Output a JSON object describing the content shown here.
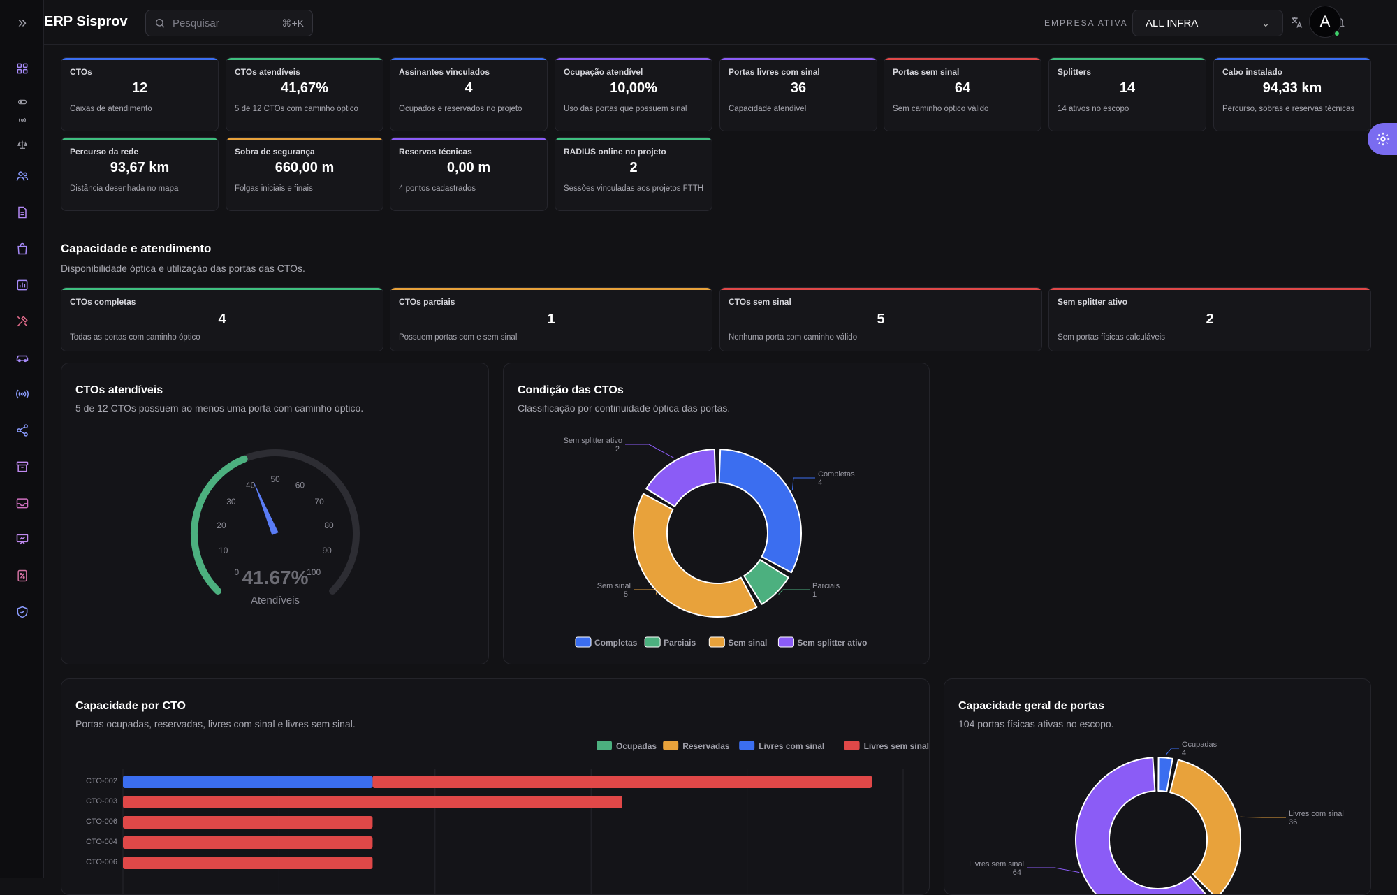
{
  "app": {
    "title": "ERP Sisprov"
  },
  "search": {
    "placeholder": "Pesquisar",
    "shortcut": "⌘+K"
  },
  "company": {
    "label": "EMPRESA ATIVA",
    "selected": "ALL INFRA"
  },
  "user": {
    "initial": "A"
  },
  "sidebar_icons": [
    "dashboard-icon",
    "router-icon",
    "radio-icon",
    "scale-icon",
    "users-icon",
    "document-icon",
    "shopping-bag-icon",
    "chart-icon",
    "tools-icon",
    "vehicle-icon",
    "signal-icon",
    "share-icon",
    "archive-icon",
    "inbox-icon",
    "presentation-icon",
    "percent-icon",
    "shield-icon"
  ],
  "kpis": [
    {
      "label": "CTOs",
      "value": "12",
      "sub": "Caixas de atendimento",
      "color": "#3b6ef0"
    },
    {
      "label": "CTOs atendíveis",
      "value": "41,67%",
      "sub": "5 de 12 CTOs com caminho óptico",
      "color": "#3fbf7f"
    },
    {
      "label": "Assinantes vinculados",
      "value": "4",
      "sub": "Ocupados e reservados no projeto",
      "color": "#3b6ef0"
    },
    {
      "label": "Ocupação atendível",
      "value": "10,00%",
      "sub": "Uso das portas que possuem sinal",
      "color": "#8b5cf6"
    },
    {
      "label": "Portas livres com sinal",
      "value": "36",
      "sub": "Capacidade atendível",
      "color": "#8b5cf6"
    },
    {
      "label": "Portas sem sinal",
      "value": "64",
      "sub": "Sem caminho óptico válido",
      "color": "#e04848"
    },
    {
      "label": "Splitters",
      "value": "14",
      "sub": "14 ativos no escopo",
      "color": "#3fbf7f"
    },
    {
      "label": "Cabo instalado",
      "value": "94,33 km",
      "sub": "Percurso, sobras e reservas técnicas",
      "color": "#3b6ef0"
    },
    {
      "label": "Percurso da rede",
      "value": "93,67 km",
      "sub": "Distância desenhada no mapa",
      "color": "#3fbf7f"
    },
    {
      "label": "Sobra de segurança",
      "value": "660,00 m",
      "sub": "Folgas iniciais e finais",
      "color": "#e8a23b"
    },
    {
      "label": "Reservas técnicas",
      "value": "0,00 m",
      "sub": "4 pontos cadastrados",
      "color": "#8b5cf6"
    },
    {
      "label": "RADIUS online no projeto",
      "value": "2",
      "sub": "Sessões vinculadas aos projetos FTTH",
      "color": "#3fbf7f"
    }
  ],
  "capacity_section": {
    "title": "Capacidade e atendimento",
    "subtitle": "Disponibilidade óptica e utilização das portas das CTOs."
  },
  "capacity_cards": [
    {
      "label": "CTOs completas",
      "value": "4",
      "sub": "Todas as portas com caminho óptico",
      "color": "#3fbf7f"
    },
    {
      "label": "CTOs parciais",
      "value": "1",
      "sub": "Possuem portas com e sem sinal",
      "color": "#e8a23b"
    },
    {
      "label": "CTOs sem sinal",
      "value": "5",
      "sub": "Nenhuma porta com caminho válido",
      "color": "#e04848"
    },
    {
      "label": "Sem splitter ativo",
      "value": "2",
      "sub": "Sem portas físicas calculáveis",
      "color": "#e04848"
    }
  ],
  "gauge_panel": {
    "title": "CTOs atendíveis",
    "subtitle": "5 de 12 CTOs possuem ao menos uma porta com caminho óptico."
  },
  "chart_data": [
    {
      "type": "gauge",
      "value": 41.67,
      "value_label": "41.67%",
      "caption": "Atendíveis",
      "range": [
        0,
        100
      ],
      "ticks": [
        "0",
        "10",
        "20",
        "30",
        "40",
        "50",
        "60",
        "70",
        "80",
        "90",
        "100"
      ],
      "color": "#4cb07f"
    },
    {
      "type": "pie",
      "title": "Condição das CTOs",
      "subtitle": "Classificação por continuidade óptica das portas.",
      "slices": [
        {
          "name": "Completas",
          "value": 4,
          "color": "#3b6ef0"
        },
        {
          "name": "Parciais",
          "value": 1,
          "color": "#4cb07f"
        },
        {
          "name": "Sem sinal",
          "value": 5,
          "color": "#e8a23b"
        },
        {
          "name": "Sem splitter ativo",
          "value": 2,
          "color": "#8b5cf6"
        }
      ]
    },
    {
      "type": "bar",
      "title": "Capacidade por CTO",
      "subtitle": "Portas ocupadas, reservadas, livres com sinal e livres sem sinal.",
      "orientation": "horizontal",
      "stacked": true,
      "categories": [
        "CTO-002",
        "CTO-003",
        "CTO-006",
        "CTO-004",
        "CTO-006"
      ],
      "series": [
        {
          "name": "Ocupadas",
          "values": [
            0,
            0,
            0,
            0,
            0
          ],
          "color": "#4cb07f"
        },
        {
          "name": "Reservadas",
          "values": [
            0,
            0,
            0,
            0,
            0
          ],
          "color": "#e8a23b"
        },
        {
          "name": "Livres com sinal",
          "values": [
            8,
            0,
            0,
            0,
            0
          ],
          "color": "#3b6ef0"
        },
        {
          "name": "Livres sem sinal",
          "values": [
            16,
            16,
            8,
            8,
            8
          ],
          "color": "#e04848"
        }
      ],
      "xlim": [
        0,
        25
      ]
    },
    {
      "type": "pie",
      "title": "Capacidade geral de portas",
      "subtitle": "104 portas físicas ativas no escopo.",
      "slices": [
        {
          "name": "Ocupadas",
          "value": 4,
          "color": "#3b6ef0"
        },
        {
          "name": "Livres com sinal",
          "value": 36,
          "color": "#e8a23b"
        },
        {
          "name": "Livres sem sinal",
          "value": 64,
          "color": "#8b5cf6"
        }
      ]
    }
  ]
}
